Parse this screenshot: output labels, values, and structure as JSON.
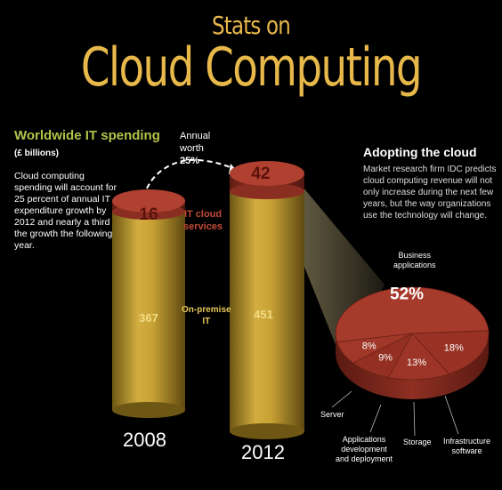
{
  "header": {
    "title_small": "Stats on",
    "title_large": "Cloud Computing"
  },
  "left_panel": {
    "heading": "Worldwide IT spending",
    "unit": "(£ billions)",
    "body": "Cloud computing spending will account for 25 percent of annual IT expenditure growth by 2012 and nearly a third of the growth the following year."
  },
  "annual": {
    "line1": "Annual",
    "line2": "worth",
    "value": "25%"
  },
  "bar_labels": {
    "cloud": [
      "IT cloud",
      "services"
    ],
    "onprem": [
      "On-premise",
      "IT"
    ]
  },
  "right_panel": {
    "heading": "Adopting the cloud",
    "body": "Market research firm IDC predicts cloud computing revenue will not only increase during the next few years, but the way organizations use the technology will change."
  },
  "chart_data": [
    {
      "type": "bar",
      "categories": [
        "2008",
        "2012"
      ],
      "series": [
        {
          "name": "IT cloud services",
          "values": [
            16,
            42
          ]
        },
        {
          "name": "On-premise IT",
          "values": [
            367,
            451
          ]
        }
      ],
      "title": "Worldwide IT spending",
      "ylabel": "(£ billions)"
    },
    {
      "type": "pie",
      "labels": [
        "Business applications",
        "Infrastructure software",
        "Storage",
        "Applications development and deployment",
        "Server"
      ],
      "values": [
        52,
        18,
        13,
        9,
        8
      ],
      "value_labels": [
        "52%",
        "18%",
        "13%",
        "9%",
        "8%"
      ]
    }
  ],
  "pie_labels": {
    "business": [
      "Business",
      "applications"
    ],
    "infra": [
      "Infrastructure",
      "software"
    ],
    "storage": [
      "Storage"
    ],
    "appdev": [
      "Applications",
      "development",
      "and deployment"
    ],
    "server": [
      "Server"
    ]
  },
  "colors": {
    "accent": "#e8b84a",
    "green": "#b3c24a",
    "cloud": "#a8392b",
    "gold": "#c9a235"
  }
}
